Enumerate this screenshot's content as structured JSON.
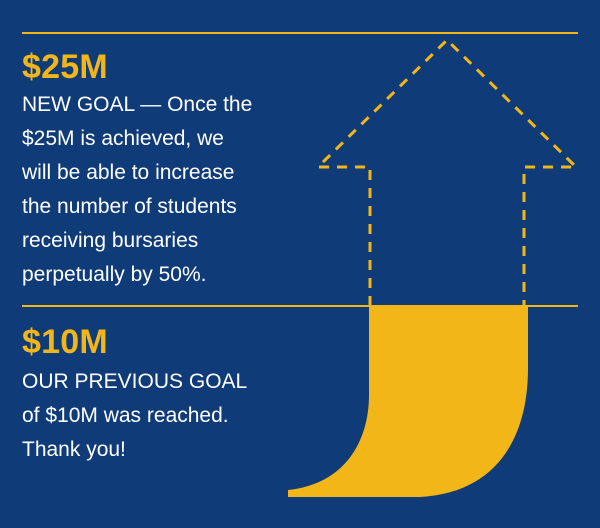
{
  "colors": {
    "background": "#0f3b78",
    "accent": "#f2b619",
    "text": "#ffffff"
  },
  "new_goal": {
    "amount": "$25M",
    "description": "NEW GOAL — Once the\n$25M is achieved, we\nwill be able to increase\nthe number of students\nreceiving bursaries\nperpetually by 50%."
  },
  "previous_goal": {
    "amount": "$10M",
    "description": "OUR PREVIOUS GOAL\nof $10M was reached.\nThank you!"
  },
  "progress": {
    "reached": 10,
    "goal": 25,
    "unit": "M"
  }
}
